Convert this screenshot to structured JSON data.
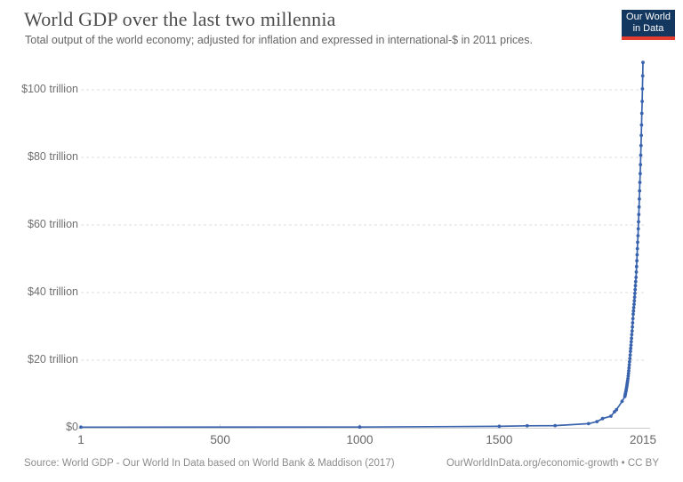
{
  "header": {
    "title": "World GDP over the last two millennia",
    "subtitle": "Total output of the world economy; adjusted for inflation and expressed in international-$ in 2011 prices.",
    "logo": {
      "line1": "Our World",
      "line2": "in Data",
      "bg_color": "#14375F",
      "accent_color": "#E23D2E"
    }
  },
  "footer": {
    "source": "Source: World GDP - Our World In Data based on World Bank & Maddison (2017)",
    "link_license": "OurWorldInData.org/economic-growth • CC BY"
  },
  "chart_data": {
    "type": "line",
    "title": "World GDP over the last two millennia",
    "subtitle": "Total output of the world economy; adjusted for inflation and expressed in international-$ in 2011 prices.",
    "series_name": "World GDP",
    "unit": "trillion international-$ (2011 prices)",
    "xlabel": "",
    "ylabel": "",
    "xlim": [
      1,
      2015
    ],
    "ylim": [
      0,
      110
    ],
    "grid": "horizontal-dashed",
    "legend": "none",
    "line_color": "#3A63AD",
    "grid_color": "#DDDDDD",
    "axis_color": "#CCCCCC",
    "x_ticks": [
      1,
      500,
      1000,
      1500,
      2015
    ],
    "x_tick_labels": [
      "1",
      "500",
      "1000",
      "1500",
      "2015"
    ],
    "y_ticks": [
      0,
      20,
      40,
      60,
      80,
      100
    ],
    "y_tick_labels": [
      "$0",
      "$20 trillion",
      "$40 trillion",
      "$60 trillion",
      "$80 trillion",
      "$100 trillion"
    ],
    "x": [
      1,
      1000,
      1500,
      1600,
      1700,
      1820,
      1850,
      1870,
      1900,
      1913,
      1920,
      1940,
      1950,
      1951,
      1952,
      1953,
      1954,
      1955,
      1956,
      1957,
      1958,
      1959,
      1960,
      1961,
      1962,
      1963,
      1964,
      1965,
      1966,
      1967,
      1968,
      1969,
      1970,
      1971,
      1972,
      1973,
      1974,
      1975,
      1976,
      1977,
      1978,
      1979,
      1980,
      1981,
      1982,
      1983,
      1984,
      1985,
      1986,
      1987,
      1988,
      1989,
      1990,
      1991,
      1992,
      1993,
      1994,
      1995,
      1996,
      1997,
      1998,
      1999,
      2000,
      2001,
      2002,
      2003,
      2004,
      2005,
      2006,
      2007,
      2008,
      2009,
      2010,
      2011,
      2012,
      2013,
      2014,
      2015
    ],
    "values": [
      0.18,
      0.21,
      0.43,
      0.58,
      0.64,
      1.2,
      1.82,
      2.7,
      3.42,
      4.74,
      5.33,
      7.81,
      9.25,
      9.63,
      10.03,
      10.45,
      10.89,
      11.34,
      11.81,
      12.3,
      12.81,
      13.34,
      13.9,
      14.59,
      15.32,
      16.08,
      16.88,
      17.72,
      18.6,
      19.53,
      20.5,
      21.52,
      22.6,
      23.51,
      24.46,
      25.45,
      26.48,
      27.55,
      28.67,
      29.83,
      31.04,
      32.29,
      33.6,
      34.56,
      35.54,
      36.55,
      37.59,
      38.66,
      39.76,
      40.89,
      42.06,
      43.26,
      44.5,
      46.08,
      47.72,
      49.42,
      51.18,
      53.0,
      54.89,
      56.84,
      58.86,
      60.96,
      63.1,
      65.35,
      67.68,
      70.1,
      72.6,
      75.19,
      77.87,
      80.65,
      83.53,
      86.51,
      89.6,
      93.03,
      96.59,
      100.29,
      104.13,
      108.1
    ]
  }
}
